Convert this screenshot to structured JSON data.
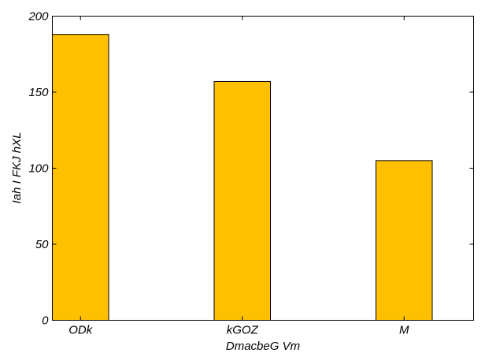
{
  "chart_data": {
    "type": "bar",
    "categories": [
      "ODk",
      "kGOZ",
      "M"
    ],
    "values": [
      188,
      157,
      105
    ],
    "xlabel": "DmacbeG Vm",
    "ylabel": "Iah I FKJ hXL",
    "ylim": [
      0,
      200
    ],
    "yticks": [
      0,
      50,
      100,
      150,
      200
    ],
    "bar_color": "#ffc000",
    "grid": false,
    "legend": "none"
  }
}
